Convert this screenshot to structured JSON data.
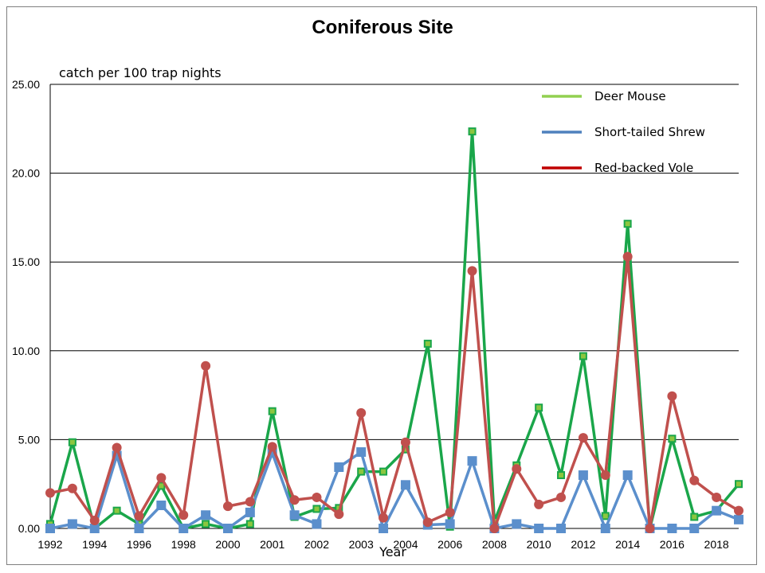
{
  "chart_data": {
    "type": "line",
    "title": "Coniferous Site",
    "ylabel": "catch per 100 trap nights",
    "xlabel": "Year",
    "ylim": [
      0,
      25
    ],
    "yticks": [
      "0.00",
      "5.00",
      "10.00",
      "15.00",
      "20.00",
      "25.00"
    ],
    "xticks": [
      "1992",
      "1994",
      "1996",
      "1998",
      "2000",
      "2001",
      "2002",
      "2003",
      "2004",
      "2006",
      "2008",
      "2010",
      "2012",
      "2014",
      "2016",
      "2018"
    ],
    "grid": "horizontal",
    "legend_position": "top-right",
    "series": [
      {
        "name": "Deer Mouse",
        "color": "#1aa64a",
        "legend_color": "#92d050",
        "marker": "square",
        "values": [
          0.25,
          4.85,
          0.0,
          1.0,
          0.25,
          2.4,
          0.0,
          0.25,
          0.0,
          0.25,
          6.6,
          0.65,
          1.1,
          1.15,
          3.2,
          3.2,
          4.45,
          10.4,
          0.1,
          22.35,
          0.4,
          3.55,
          6.8,
          3.0,
          9.7,
          0.7,
          17.15,
          0.0,
          5.05,
          0.65,
          1.0,
          2.5
        ]
      },
      {
        "name": "Short-tailed Shrew",
        "color": "#5b8fcc",
        "legend_color": "#4f81bd",
        "marker": "square-large",
        "values": [
          0.0,
          0.25,
          0.0,
          4.1,
          0.0,
          1.3,
          0.0,
          0.75,
          0.0,
          0.9,
          4.25,
          0.75,
          0.25,
          3.45,
          4.3,
          0.0,
          2.45,
          0.2,
          0.25,
          3.8,
          0.0,
          0.25,
          0.0,
          0.0,
          3.0,
          0.0,
          3.0,
          0.0,
          0.0,
          0.0,
          1.0,
          0.5
        ]
      },
      {
        "name": "Red-backed Vole",
        "color": "#c0504d",
        "legend_color": "#c00000",
        "marker": "circle",
        "values": [
          2.0,
          2.25,
          0.45,
          4.55,
          0.7,
          2.85,
          0.75,
          9.15,
          1.25,
          1.5,
          4.6,
          1.6,
          1.75,
          0.8,
          6.5,
          0.6,
          4.85,
          0.35,
          0.9,
          14.5,
          0.0,
          3.35,
          1.35,
          1.75,
          5.1,
          3.0,
          15.3,
          0.0,
          7.45,
          2.7,
          1.75,
          1.0
        ]
      }
    ]
  }
}
